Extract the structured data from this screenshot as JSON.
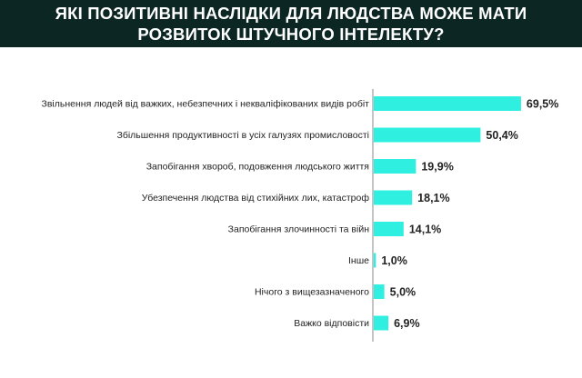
{
  "title": {
    "line1": "ЯКІ ПОЗИТИВНІ НАСЛІДКИ ДЛЯ ЛЮДСТВА МОЖЕ МАТИ",
    "line2": "РОЗВИТОК ШТУЧНОГО ІНТЕЛЕКТУ?"
  },
  "colors": {
    "header_bg": "#0c2624",
    "bar": "#2ff0e0",
    "axis": "#8a8a8a"
  },
  "chart_data": {
    "type": "bar",
    "orientation": "horizontal",
    "categories": [
      "Звільнення людей від важких, небезпечних і некваліфікованих видів робіт",
      "Збільшення продуктивності в усіх галузях промисловості",
      "Запобігання хвороб, подовження людського життя",
      "Убезпечення людства від стихійних лих, катастроф",
      "Запобігання злочинності та війн",
      "Інше",
      "Нічого з вищезазначеного",
      "Важко відповісти"
    ],
    "values": [
      69.5,
      50.4,
      19.9,
      18.1,
      14.1,
      1.0,
      5.0,
      6.9
    ],
    "value_labels": [
      "69,5%",
      "50,4%",
      "19,9%",
      "18,1%",
      "14,1%",
      "1,0%",
      "5,0%",
      "6,9%"
    ],
    "xlim": [
      0,
      100
    ],
    "grid": false,
    "legend": "none"
  }
}
